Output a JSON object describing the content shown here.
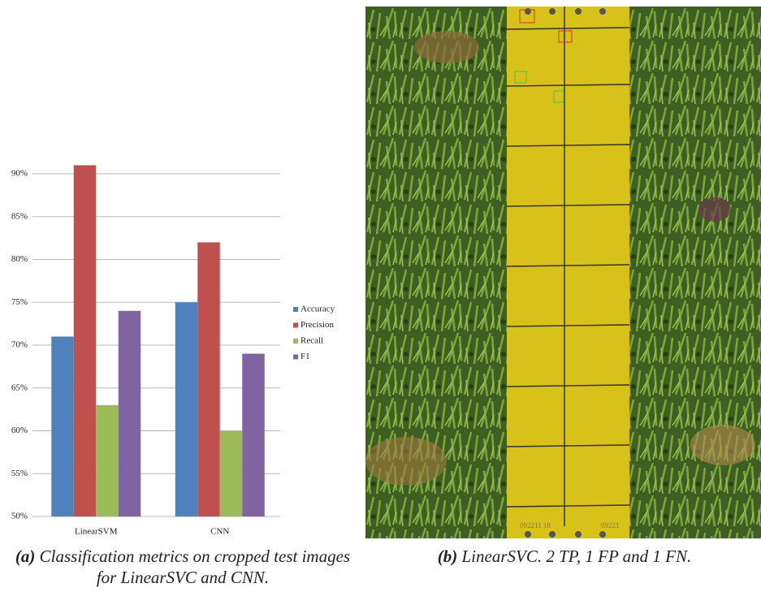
{
  "chart_data": {
    "type": "bar",
    "categories": [
      "LinearSVM",
      "CNN"
    ],
    "series": [
      {
        "name": "Accuracy",
        "color": "#4f81bd",
        "values": [
          71,
          75
        ]
      },
      {
        "name": "Precision",
        "color": "#c0504d",
        "values": [
          91,
          82
        ]
      },
      {
        "name": "Recall",
        "color": "#9bbb59",
        "values": [
          63,
          60
        ]
      },
      {
        "name": "F1",
        "color": "#8064a2",
        "values": [
          74,
          69
        ]
      }
    ],
    "ylim": [
      50,
      92
    ],
    "yticks": [
      {
        "value": 50,
        "label": "50%"
      },
      {
        "value": 55,
        "label": "55%"
      },
      {
        "value": 60,
        "label": "60%"
      },
      {
        "value": 65,
        "label": "65%"
      },
      {
        "value": 70,
        "label": "70%"
      },
      {
        "value": 75,
        "label": "75%"
      },
      {
        "value": 80,
        "label": "80%"
      },
      {
        "value": 85,
        "label": "85%"
      },
      {
        "value": 90,
        "label": "90%"
      }
    ],
    "grid": true,
    "legend": "right"
  },
  "captions": [
    {
      "label": "(a)",
      "text": "Classification metrics on cropped test images for LinearSVC and CNN."
    },
    {
      "label": "(b)",
      "text": "LinearSVC. 2 TP, 1 FP and 1 FN."
    }
  ],
  "photo": {
    "strip_labels": [
      "092211 18",
      "09221"
    ]
  }
}
